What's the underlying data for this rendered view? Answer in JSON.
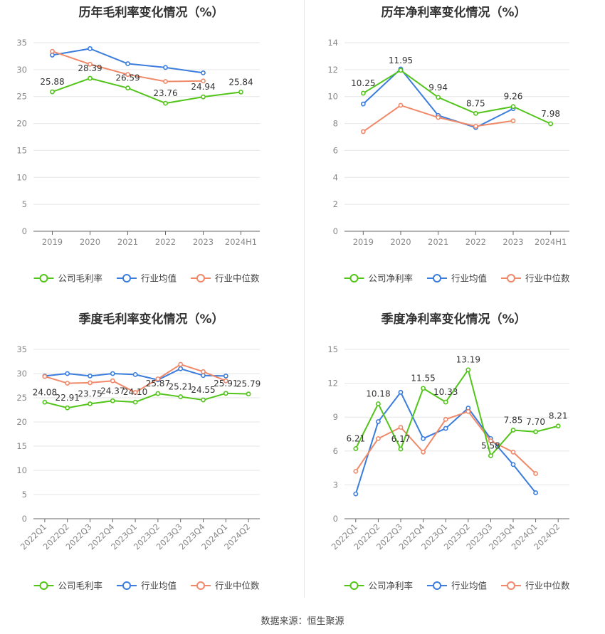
{
  "source": "数据来源：恒生聚源",
  "colors": {
    "company": "#52c41a",
    "industry_avg": "#3b7ddd",
    "industry_median": "#f0896a",
    "grid": "#e6e6e6"
  },
  "chart_data": [
    {
      "type": "line",
      "title": "历年毛利率变化情况（%）",
      "categories": [
        "2019",
        "2020",
        "2021",
        "2022",
        "2023",
        "2024H1"
      ],
      "ylim": [
        0,
        35
      ],
      "yticks": [
        0,
        5,
        10,
        15,
        20,
        25,
        30,
        35
      ],
      "grid": true,
      "legend_position": "bottom",
      "series": [
        {
          "name": "公司毛利率",
          "role": "company",
          "values": [
            25.88,
            28.39,
            26.59,
            23.76,
            24.94,
            25.84
          ],
          "labels": [
            "25.88",
            "28.39",
            "26.59",
            "23.76",
            "24.94",
            "25.84"
          ]
        },
        {
          "name": "行业均值",
          "role": "industry_avg",
          "values": [
            32.7,
            33.9,
            31.1,
            30.4,
            29.4,
            null
          ]
        },
        {
          "name": "行业中位数",
          "role": "industry_median",
          "values": [
            33.4,
            31.0,
            29.1,
            27.8,
            27.9,
            null
          ]
        }
      ]
    },
    {
      "type": "line",
      "title": "历年净利率变化情况（%）",
      "categories": [
        "2019",
        "2020",
        "2021",
        "2022",
        "2023",
        "2024H1"
      ],
      "ylim": [
        0,
        14
      ],
      "yticks": [
        0,
        2,
        4,
        6,
        8,
        10,
        12,
        14
      ],
      "grid": true,
      "legend_position": "bottom",
      "series": [
        {
          "name": "公司净利率",
          "role": "company",
          "values": [
            10.25,
            11.95,
            9.94,
            8.75,
            9.26,
            7.98
          ],
          "labels": [
            "10.25",
            "11.95",
            "9.94",
            "8.75",
            "9.26",
            "7.98"
          ]
        },
        {
          "name": "行业均值",
          "role": "industry_avg",
          "values": [
            9.45,
            12.05,
            8.6,
            7.7,
            9.1,
            null
          ]
        },
        {
          "name": "行业中位数",
          "role": "industry_median",
          "values": [
            7.4,
            9.35,
            8.45,
            7.8,
            8.2,
            null
          ]
        }
      ]
    },
    {
      "type": "line",
      "title": "季度毛利率变化情况（%）",
      "categories": [
        "2022Q1",
        "2022Q2",
        "2022Q3",
        "2022Q4",
        "2023Q1",
        "2023Q2",
        "2023Q3",
        "2023Q4",
        "2024Q1",
        "2024Q2"
      ],
      "ylim": [
        0,
        35
      ],
      "yticks": [
        0,
        5,
        10,
        15,
        20,
        25,
        30,
        35
      ],
      "grid": true,
      "legend_position": "bottom",
      "series": [
        {
          "name": "公司毛利率",
          "role": "company",
          "values": [
            24.08,
            22.91,
            23.75,
            24.37,
            24.1,
            25.87,
            25.21,
            24.55,
            25.91,
            25.79
          ],
          "labels": [
            "24.08",
            "22.91",
            "23.75",
            "24.37",
            "24.10",
            "25.87",
            "25.21",
            "24.55",
            "25.91",
            "25.79"
          ]
        },
        {
          "name": "行业均值",
          "role": "industry_avg",
          "values": [
            29.5,
            30.0,
            29.5,
            30.0,
            29.8,
            28.7,
            31.0,
            29.6,
            29.5,
            null
          ]
        },
        {
          "name": "行业中位数",
          "role": "industry_median",
          "values": [
            29.4,
            28.0,
            28.1,
            28.5,
            26.1,
            28.9,
            31.9,
            30.4,
            28.5,
            null
          ]
        }
      ]
    },
    {
      "type": "line",
      "title": "季度净利率变化情况（%）",
      "categories": [
        "2022Q1",
        "2022Q2",
        "2022Q3",
        "2022Q4",
        "2023Q1",
        "2023Q2",
        "2023Q3",
        "2023Q4",
        "2024Q1",
        "2024Q2"
      ],
      "ylim": [
        0,
        15
      ],
      "yticks": [
        0,
        3,
        6,
        9,
        12,
        15
      ],
      "grid": true,
      "legend_position": "bottom",
      "series": [
        {
          "name": "公司净利率",
          "role": "company",
          "values": [
            6.21,
            10.18,
            6.17,
            11.55,
            10.33,
            13.19,
            5.58,
            7.85,
            7.7,
            8.21
          ],
          "labels": [
            "6.21",
            "10.18",
            "6.17",
            "11.55",
            "10.33",
            "13.19",
            "5.58",
            "7.85",
            "7.70",
            "8.21"
          ]
        },
        {
          "name": "行业均值",
          "role": "industry_avg",
          "values": [
            2.2,
            8.6,
            11.2,
            7.1,
            8.0,
            9.8,
            7.1,
            4.8,
            2.3,
            null
          ]
        },
        {
          "name": "行业中位数",
          "role": "industry_median",
          "values": [
            4.2,
            7.1,
            8.1,
            5.9,
            8.8,
            9.5,
            6.9,
            5.9,
            4.0,
            null
          ]
        }
      ]
    }
  ]
}
